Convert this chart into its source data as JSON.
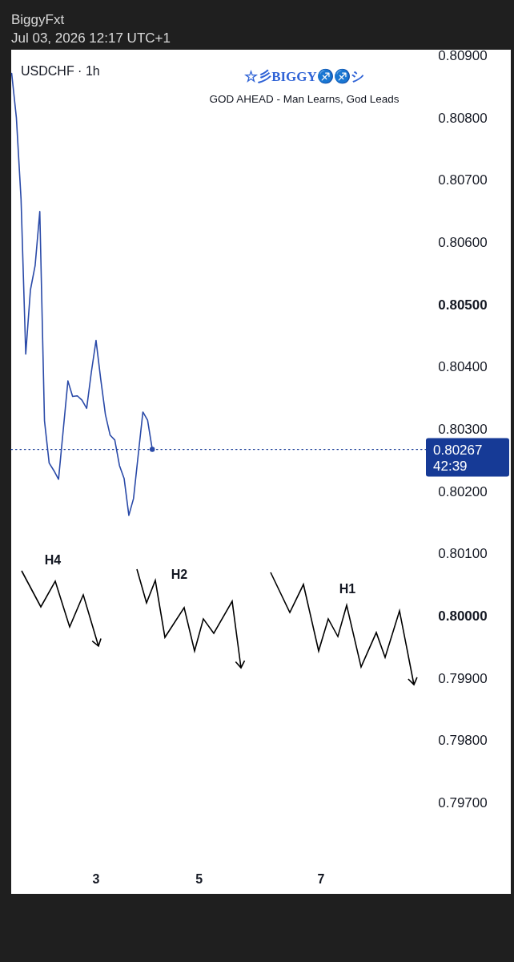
{
  "chart_data": {
    "type": "line",
    "title": "USDCHF · 1h",
    "annotations": [
      "BiggyFxt",
      "Jul 03, 2026 12:17 UTC+1",
      "☆彡BIGGY♐♐シ",
      "GOD AHEAD - Man Learns, God Leads",
      "H4",
      "H2",
      "H1"
    ],
    "categories": [
      null,
      null,
      null,
      null,
      null,
      null,
      null,
      null,
      null,
      null,
      null,
      null,
      null,
      null,
      null,
      null,
      null,
      null,
      "3",
      null,
      null,
      null,
      null,
      null,
      null,
      null,
      null,
      null,
      null,
      null,
      null,
      null,
      null,
      null,
      null,
      null,
      null,
      null,
      null,
      null,
      "5",
      null,
      null,
      null,
      null,
      null,
      null,
      null,
      null,
      null,
      null,
      null,
      null,
      null,
      null,
      null,
      null,
      null,
      null,
      null,
      null,
      null,
      null,
      null,
      null,
      null,
      "7",
      null,
      null,
      null,
      null,
      null,
      null,
      null,
      null,
      null,
      null,
      null,
      null,
      null,
      null,
      null,
      null,
      null,
      null,
      null,
      null,
      null,
      null,
      null,
      null,
      null,
      null,
      null,
      null,
      null,
      null,
      null,
      null,
      null,
      null,
      null,
      null,
      null,
      null,
      null,
      null
    ],
    "series": [
      {
        "color": "#2a4aa8",
        "values": [
          0.80871,
          0.808,
          0.80669,
          0.8042,
          0.80523,
          0.80562,
          0.80649,
          0.80313,
          0.80245,
          0.80233,
          0.80219,
          0.80298,
          0.80377,
          0.80352,
          0.80353,
          0.80346,
          0.80333,
          0.80391,
          0.80442,
          0.8038,
          0.80323,
          0.8029,
          0.80282,
          0.80241,
          0.8022,
          0.80161,
          0.80188,
          0.80258,
          0.80327,
          0.80314,
          0.80267,
          null,
          null,
          null,
          null,
          null,
          null,
          null,
          null,
          null,
          null,
          null,
          null,
          null,
          null,
          null,
          null,
          null,
          null,
          null,
          null,
          null,
          null,
          null,
          null,
          null,
          null,
          null,
          null,
          null,
          null,
          null,
          null,
          null,
          null,
          null,
          null,
          null,
          null,
          null,
          null,
          null,
          null,
          null,
          null,
          null,
          null,
          null,
          null,
          null,
          null,
          null,
          null,
          null,
          null,
          null,
          null,
          null,
          null,
          null,
          null,
          null,
          null,
          null,
          null,
          null,
          null,
          null,
          null,
          null,
          null,
          null,
          null,
          null,
          null,
          null,
          null
        ]
      }
    ],
    "ylim": [
      0.79553,
      0.80909
    ],
    "yticks": [
      {
        "value": 0.809,
        "label": "0.80900"
      },
      {
        "value": 0.808,
        "label": "0.80800"
      },
      {
        "value": 0.807,
        "label": "0.80700"
      },
      {
        "value": 0.806,
        "label": "0.80600"
      },
      {
        "value": 0.805,
        "label": "0.80500"
      },
      {
        "value": 0.804,
        "label": "0.80400"
      },
      {
        "value": 0.803,
        "label": "0.80300"
      },
      {
        "value": 0.802,
        "label": "0.80200"
      },
      {
        "value": 0.801,
        "label": "0.80100"
      },
      {
        "value": 0.8,
        "label": "0.80000"
      },
      {
        "value": 0.799,
        "label": "0.79900"
      },
      {
        "value": 0.798,
        "label": "0.79800"
      },
      {
        "value": 0.797,
        "label": "0.79700"
      }
    ],
    "ref_lines": [
      {
        "axis": "y",
        "value": 0.80267,
        "label": "0.80267\n42:39",
        "color": "#163a96",
        "line_style": "dotted"
      }
    ]
  }
}
